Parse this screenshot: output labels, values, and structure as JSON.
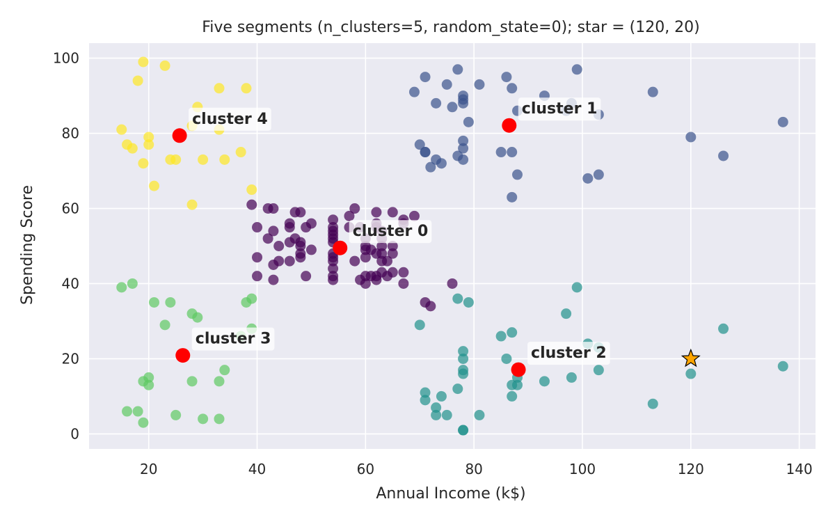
{
  "chart_data": {
    "type": "scatter",
    "title": "Five segments (n_clusters=5, random_state=0); star = (120, 20)",
    "xlabel": "Annual Income (k$)",
    "ylabel": "Spending Score",
    "xlim": [
      9,
      143
    ],
    "ylim": [
      -4,
      104
    ],
    "xticks": [
      20,
      40,
      60,
      80,
      100,
      120,
      140
    ],
    "yticks": [
      0,
      20,
      40,
      60,
      80,
      100
    ],
    "grid": true,
    "legend": "none",
    "background": "#eaeaf2",
    "series": [
      {
        "cluster": 0,
        "color": "#440154",
        "points": [
          [
            39,
            61
          ],
          [
            40,
            55
          ],
          [
            40,
            47
          ],
          [
            40,
            42
          ],
          [
            42,
            52
          ],
          [
            42,
            60
          ],
          [
            43,
            54
          ],
          [
            43,
            60
          ],
          [
            43,
            45
          ],
          [
            43,
            41
          ],
          [
            44,
            50
          ],
          [
            44,
            46
          ],
          [
            46,
            51
          ],
          [
            46,
            46
          ],
          [
            46,
            56
          ],
          [
            46,
            55
          ],
          [
            47,
            52
          ],
          [
            47,
            59
          ],
          [
            48,
            51
          ],
          [
            48,
            59
          ],
          [
            48,
            50
          ],
          [
            48,
            48
          ],
          [
            48,
            47
          ],
          [
            49,
            55
          ],
          [
            49,
            42
          ],
          [
            50,
            49
          ],
          [
            50,
            56
          ],
          [
            54,
            47
          ],
          [
            54,
            54
          ],
          [
            54,
            53
          ],
          [
            54,
            48
          ],
          [
            54,
            52
          ],
          [
            54,
            42
          ],
          [
            54,
            51
          ],
          [
            54,
            55
          ],
          [
            54,
            41
          ],
          [
            54,
            44
          ],
          [
            54,
            57
          ],
          [
            54,
            46
          ],
          [
            57,
            58
          ],
          [
            57,
            55
          ],
          [
            58,
            60
          ],
          [
            58,
            46
          ],
          [
            59,
            55
          ],
          [
            59,
            41
          ],
          [
            60,
            49
          ],
          [
            60,
            40
          ],
          [
            60,
            42
          ],
          [
            60,
            52
          ],
          [
            60,
            47
          ],
          [
            60,
            50
          ],
          [
            61,
            42
          ],
          [
            61,
            49
          ],
          [
            62,
            41
          ],
          [
            62,
            48
          ],
          [
            62,
            59
          ],
          [
            62,
            55
          ],
          [
            62,
            56
          ],
          [
            62,
            42
          ],
          [
            63,
            50
          ],
          [
            63,
            46
          ],
          [
            63,
            43
          ],
          [
            63,
            48
          ],
          [
            63,
            52
          ],
          [
            63,
            54
          ],
          [
            64,
            42
          ],
          [
            64,
            46
          ],
          [
            65,
            48
          ],
          [
            65,
            50
          ],
          [
            65,
            43
          ],
          [
            65,
            59
          ],
          [
            67,
            43
          ],
          [
            67,
            57
          ],
          [
            67,
            56
          ],
          [
            67,
            40
          ],
          [
            69,
            58
          ],
          [
            71,
            35
          ],
          [
            72,
            34
          ],
          [
            76,
            40
          ]
        ]
      },
      {
        "cluster": 1,
        "color": "#3b528b",
        "points": [
          [
            69,
            91
          ],
          [
            70,
            77
          ],
          [
            71,
            95
          ],
          [
            71,
            75
          ],
          [
            71,
            75
          ],
          [
            72,
            71
          ],
          [
            73,
            88
          ],
          [
            73,
            73
          ],
          [
            74,
            72
          ],
          [
            75,
            93
          ],
          [
            76,
            87
          ],
          [
            77,
            97
          ],
          [
            77,
            74
          ],
          [
            78,
            90
          ],
          [
            78,
            88
          ],
          [
            78,
            76
          ],
          [
            78,
            89
          ],
          [
            78,
            78
          ],
          [
            78,
            73
          ],
          [
            79,
            83
          ],
          [
            81,
            93
          ],
          [
            85,
            75
          ],
          [
            86,
            95
          ],
          [
            87,
            63
          ],
          [
            87,
            75
          ],
          [
            87,
            92
          ],
          [
            88,
            86
          ],
          [
            88,
            69
          ],
          [
            93,
            90
          ],
          [
            97,
            86
          ],
          [
            98,
            88
          ],
          [
            99,
            97
          ],
          [
            101,
            68
          ],
          [
            103,
            85
          ],
          [
            103,
            69
          ],
          [
            113,
            91
          ],
          [
            120,
            79
          ],
          [
            126,
            74
          ],
          [
            137,
            83
          ]
        ]
      },
      {
        "cluster": 2,
        "color": "#21918c",
        "points": [
          [
            70,
            29
          ],
          [
            71,
            11
          ],
          [
            71,
            9
          ],
          [
            73,
            5
          ],
          [
            73,
            7
          ],
          [
            74,
            10
          ],
          [
            75,
            5
          ],
          [
            77,
            12
          ],
          [
            77,
            36
          ],
          [
            78,
            22
          ],
          [
            78,
            17
          ],
          [
            78,
            20
          ],
          [
            78,
            16
          ],
          [
            78,
            1
          ],
          [
            78,
            1
          ],
          [
            79,
            35
          ],
          [
            81,
            5
          ],
          [
            85,
            26
          ],
          [
            86,
            20
          ],
          [
            87,
            27
          ],
          [
            87,
            13
          ],
          [
            87,
            10
          ],
          [
            88,
            13
          ],
          [
            88,
            15
          ],
          [
            93,
            14
          ],
          [
            97,
            32
          ],
          [
            98,
            15
          ],
          [
            99,
            39
          ],
          [
            101,
            24
          ],
          [
            103,
            17
          ],
          [
            103,
            23
          ],
          [
            113,
            8
          ],
          [
            120,
            16
          ],
          [
            126,
            28
          ],
          [
            137,
            18
          ]
        ]
      },
      {
        "cluster": 3,
        "color": "#5ec962",
        "points": [
          [
            15,
            39
          ],
          [
            16,
            6
          ],
          [
            17,
            40
          ],
          [
            18,
            6
          ],
          [
            19,
            3
          ],
          [
            19,
            14
          ],
          [
            20,
            15
          ],
          [
            20,
            13
          ],
          [
            21,
            35
          ],
          [
            23,
            29
          ],
          [
            24,
            35
          ],
          [
            25,
            5
          ],
          [
            28,
            14
          ],
          [
            28,
            32
          ],
          [
            29,
            31
          ],
          [
            30,
            4
          ],
          [
            33,
            4
          ],
          [
            33,
            14
          ],
          [
            34,
            17
          ],
          [
            37,
            26
          ],
          [
            38,
            35
          ],
          [
            39,
            36
          ],
          [
            39,
            28
          ]
        ]
      },
      {
        "cluster": 4,
        "color": "#fde725",
        "points": [
          [
            15,
            81
          ],
          [
            16,
            77
          ],
          [
            17,
            76
          ],
          [
            18,
            94
          ],
          [
            19,
            72
          ],
          [
            19,
            99
          ],
          [
            20,
            77
          ],
          [
            20,
            79
          ],
          [
            21,
            66
          ],
          [
            23,
            98
          ],
          [
            24,
            73
          ],
          [
            25,
            73
          ],
          [
            28,
            82
          ],
          [
            28,
            61
          ],
          [
            29,
            87
          ],
          [
            30,
            73
          ],
          [
            33,
            92
          ],
          [
            33,
            81
          ],
          [
            34,
            73
          ],
          [
            37,
            75
          ],
          [
            38,
            92
          ],
          [
            39,
            65
          ]
        ]
      }
    ],
    "centroids": [
      {
        "label": "cluster 0",
        "x": 55.3,
        "y": 49.5
      },
      {
        "label": "cluster 1",
        "x": 86.5,
        "y": 82.1
      },
      {
        "label": "cluster 2",
        "x": 88.2,
        "y": 17.1
      },
      {
        "label": "cluster 3",
        "x": 26.3,
        "y": 20.9
      },
      {
        "label": "cluster 4",
        "x": 25.7,
        "y": 79.4
      }
    ],
    "centroid_color": "#ff0000",
    "star": {
      "x": 120,
      "y": 20,
      "color": "#ffa500"
    }
  }
}
